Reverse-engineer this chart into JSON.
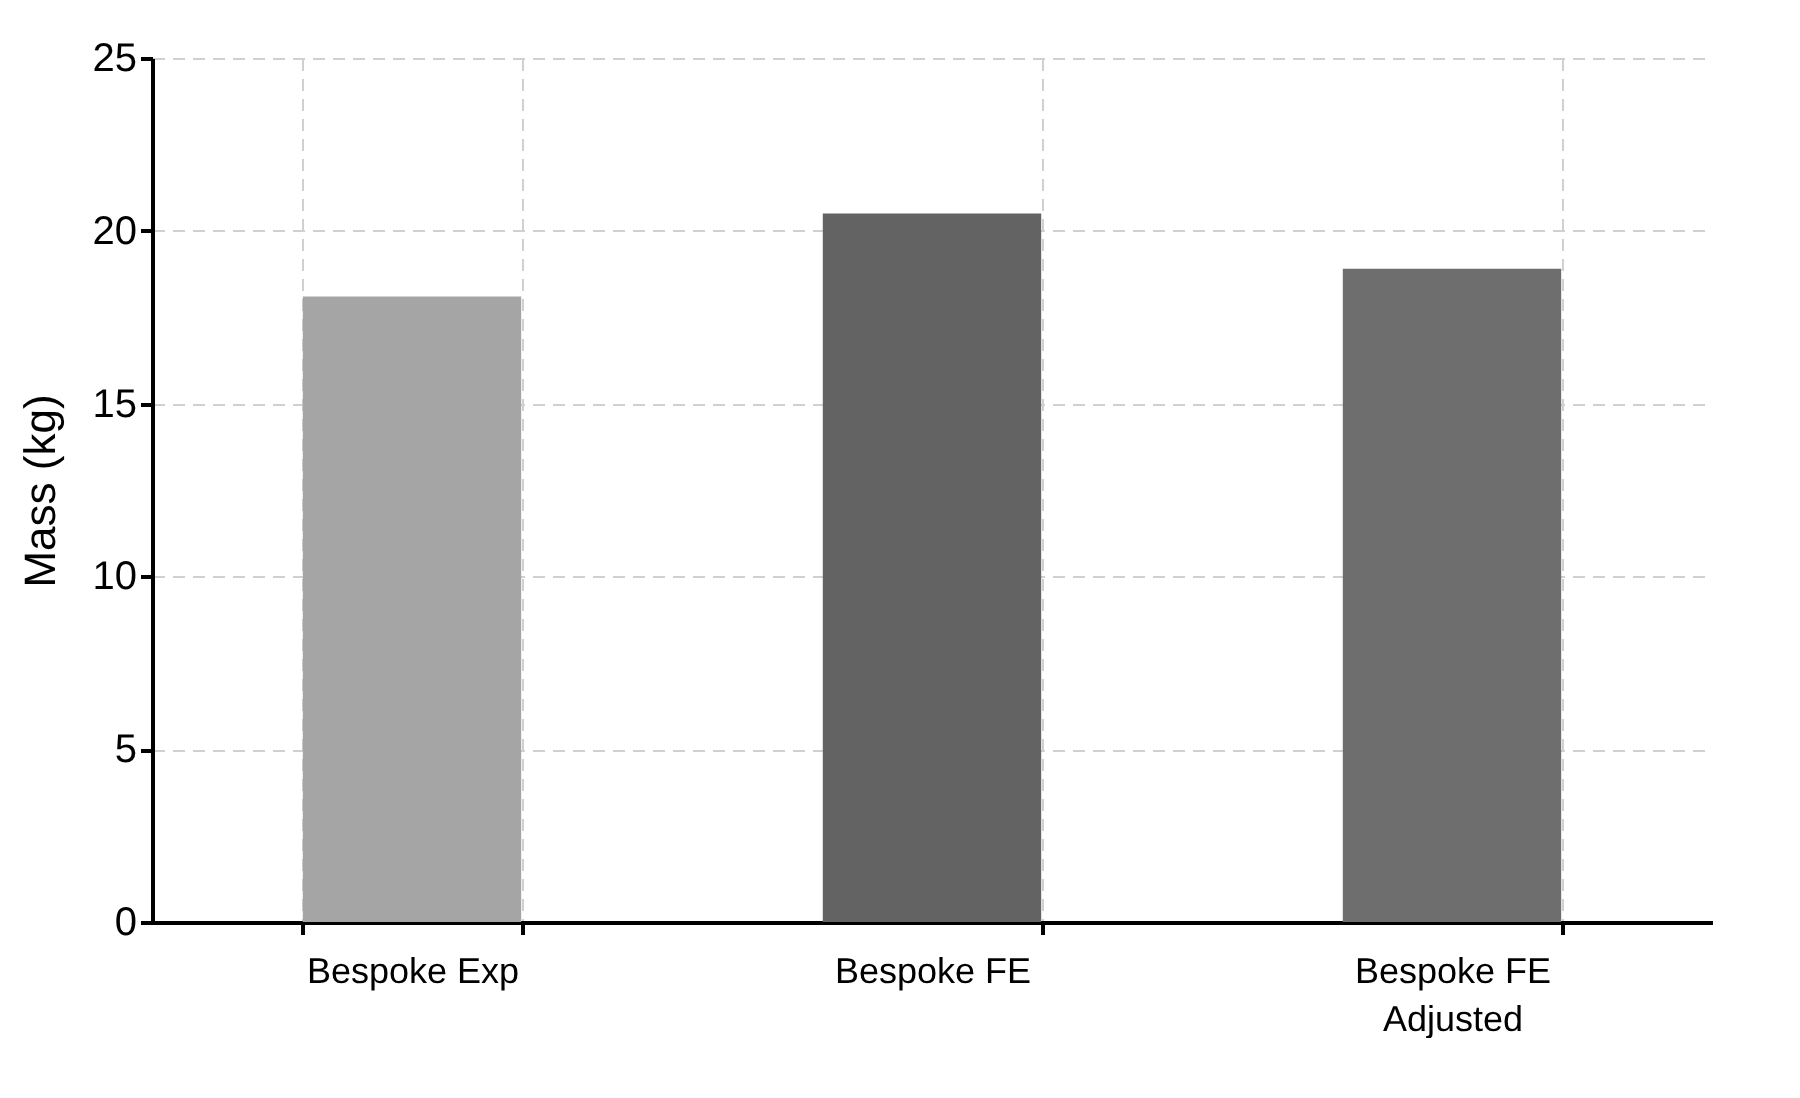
{
  "chart_data": {
    "type": "bar",
    "ylabel": "Mass (kg)",
    "categories": [
      "Bespoke Exp",
      "Bespoke FE",
      "Bespoke FE Adjusted"
    ],
    "values": [
      18.1,
      20.5,
      18.9
    ],
    "colors": [
      "#a5a5a5",
      "#636363",
      "#6e6e6e"
    ],
    "ylim": [
      0,
      25
    ],
    "yticks": [
      0,
      5,
      10,
      15,
      20,
      25
    ],
    "grid": true
  }
}
